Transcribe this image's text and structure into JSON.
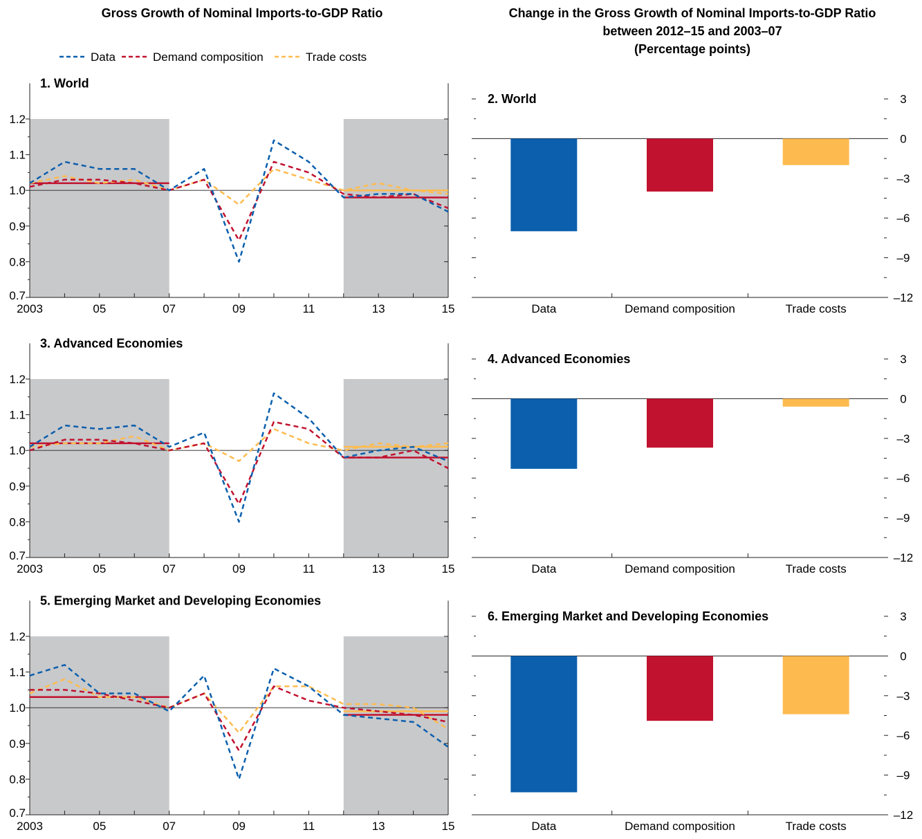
{
  "left_title": "Gross Growth of Nominal Imports-to-GDP Ratio",
  "right_title_lines": [
    "Change in the Gross Growth of Nominal Imports-to-GDP Ratio",
    "between 2012–15 and 2003–07",
    "(Percentage points)"
  ],
  "legend": [
    {
      "label": "Data",
      "color": "#0b5fad"
    },
    {
      "label": "Demand composition",
      "color": "#c1122f"
    },
    {
      "label": "Trade costs",
      "color": "#fdbb4f"
    }
  ],
  "colors": {
    "data": "#0b5fad",
    "demand": "#c1122f",
    "trade": "#fdbb4f",
    "shade": "#c8c9cb",
    "axis": "#231f20"
  },
  "chart_data": [
    {
      "type": "line",
      "title": "1. World",
      "x": [
        2003,
        2004,
        2005,
        2006,
        2007,
        2008,
        2009,
        2010,
        2011,
        2012,
        2013,
        2014,
        2015
      ],
      "xtick_values": [
        2003,
        2005,
        2007,
        2009,
        2011,
        2013,
        2015
      ],
      "xtick_labels": [
        "2003",
        "05",
        "07",
        "09",
        "11",
        "13",
        "15"
      ],
      "ylim": [
        0.7,
        1.2
      ],
      "yticks": [
        0.7,
        0.8,
        0.9,
        1.0,
        1.1,
        1.2
      ],
      "ytick_labels": [
        "0.7",
        "0.8",
        "0.9",
        "1.0",
        "1.1",
        "1.2"
      ],
      "reference_line": 1.0,
      "shaded_periods": [
        [
          2003,
          2007
        ],
        [
          2012,
          2015
        ]
      ],
      "series": [
        {
          "name": "Data",
          "style": "dashed",
          "values": [
            1.02,
            1.08,
            1.06,
            1.06,
            1.0,
            1.06,
            0.8,
            1.14,
            1.08,
            0.98,
            0.99,
            0.99,
            0.94
          ]
        },
        {
          "name": "Demand composition",
          "style": "dashed",
          "values": [
            1.01,
            1.03,
            1.03,
            1.02,
            1.0,
            1.03,
            0.86,
            1.08,
            1.05,
            0.99,
            0.98,
            0.99,
            0.95
          ]
        },
        {
          "name": "Trade costs",
          "style": "dashed",
          "values": [
            1.02,
            1.04,
            1.02,
            1.03,
            1.0,
            1.03,
            0.96,
            1.06,
            1.03,
            1.0,
            1.02,
            1.0,
            0.99
          ]
        }
      ],
      "period_averages": [
        {
          "series": "Demand composition",
          "start": 2003,
          "end": 2007,
          "value": 1.02
        },
        {
          "series": "Demand composition",
          "start": 2012,
          "end": 2015,
          "value": 0.98
        },
        {
          "series": "Trade costs",
          "start": 2012,
          "end": 2015,
          "value": 1.0
        }
      ]
    },
    {
      "type": "bar",
      "title": "2. World",
      "categories": [
        "Data",
        "Demand composition",
        "Trade costs"
      ],
      "values": [
        -7.0,
        -4.0,
        -2.0
      ],
      "ylim": [
        -12,
        3
      ],
      "yticks": [
        3,
        0,
        -3,
        -6,
        -9,
        -12
      ],
      "ytick_labels": [
        "3",
        "0",
        "–3",
        "–6",
        "–9",
        "–12"
      ]
    },
    {
      "type": "line",
      "title": "3. Advanced Economies",
      "x": [
        2003,
        2004,
        2005,
        2006,
        2007,
        2008,
        2009,
        2010,
        2011,
        2012,
        2013,
        2014,
        2015
      ],
      "xtick_values": [
        2003,
        2005,
        2007,
        2009,
        2011,
        2013,
        2015
      ],
      "xtick_labels": [
        "2003",
        "05",
        "07",
        "09",
        "11",
        "13",
        "15"
      ],
      "ylim": [
        0.7,
        1.2
      ],
      "yticks": [
        0.7,
        0.8,
        0.9,
        1.0,
        1.1,
        1.2
      ],
      "ytick_labels": [
        "0.7",
        "0.8",
        "0.9",
        "1.0",
        "1.1",
        "1.2"
      ],
      "reference_line": 1.0,
      "shaded_periods": [
        [
          2003,
          2007
        ],
        [
          2012,
          2015
        ]
      ],
      "series": [
        {
          "name": "Data",
          "style": "dashed",
          "values": [
            1.01,
            1.07,
            1.06,
            1.07,
            1.01,
            1.05,
            0.8,
            1.16,
            1.09,
            0.98,
            1.0,
            1.01,
            0.97
          ]
        },
        {
          "name": "Demand composition",
          "style": "dashed",
          "values": [
            1.0,
            1.03,
            1.03,
            1.02,
            1.0,
            1.02,
            0.85,
            1.08,
            1.06,
            0.98,
            0.98,
            1.0,
            0.95
          ]
        },
        {
          "name": "Trade costs",
          "style": "dashed",
          "values": [
            1.01,
            1.02,
            1.02,
            1.04,
            1.0,
            1.02,
            0.97,
            1.06,
            1.02,
            1.0,
            1.02,
            1.01,
            1.02
          ]
        }
      ],
      "period_averages": [
        {
          "series": "Demand composition",
          "start": 2003,
          "end": 2007,
          "value": 1.02
        },
        {
          "series": "Demand composition",
          "start": 2012,
          "end": 2015,
          "value": 0.98
        },
        {
          "series": "Trade costs",
          "start": 2012,
          "end": 2015,
          "value": 1.01
        }
      ]
    },
    {
      "type": "bar",
      "title": "4. Advanced Economies",
      "categories": [
        "Data",
        "Demand composition",
        "Trade costs"
      ],
      "values": [
        -5.3,
        -3.7,
        -0.6
      ],
      "ylim": [
        -12,
        3
      ],
      "yticks": [
        3,
        0,
        -3,
        -6,
        -9,
        -12
      ],
      "ytick_labels": [
        "3",
        "0",
        "–3",
        "–6",
        "–9",
        "–12"
      ]
    },
    {
      "type": "line",
      "title": "5. Emerging Market and Developing Economies",
      "x": [
        2003,
        2004,
        2005,
        2006,
        2007,
        2008,
        2009,
        2010,
        2011,
        2012,
        2013,
        2014,
        2015
      ],
      "xtick_values": [
        2003,
        2005,
        2007,
        2009,
        2011,
        2013,
        2015
      ],
      "xtick_labels": [
        "2003",
        "05",
        "07",
        "09",
        "11",
        "13",
        "15"
      ],
      "ylim": [
        0.7,
        1.2
      ],
      "yticks": [
        0.7,
        0.8,
        0.9,
        1.0,
        1.1,
        1.2
      ],
      "ytick_labels": [
        "0.7",
        "0.8",
        "0.9",
        "1.0",
        "1.1",
        "1.2"
      ],
      "reference_line": 1.0,
      "shaded_periods": [
        [
          2003,
          2007
        ],
        [
          2012,
          2015
        ]
      ],
      "series": [
        {
          "name": "Data",
          "style": "dashed",
          "values": [
            1.09,
            1.12,
            1.04,
            1.04,
            0.99,
            1.09,
            0.8,
            1.11,
            1.06,
            0.98,
            0.97,
            0.96,
            0.89
          ]
        },
        {
          "name": "Demand composition",
          "style": "dashed",
          "values": [
            1.05,
            1.05,
            1.04,
            1.02,
            1.0,
            1.04,
            0.88,
            1.06,
            1.02,
            1.0,
            0.99,
            0.98,
            0.96
          ]
        },
        {
          "name": "Trade costs",
          "style": "dashed",
          "values": [
            1.04,
            1.08,
            1.03,
            1.03,
            1.0,
            1.04,
            0.93,
            1.06,
            1.06,
            1.01,
            1.01,
            1.0,
            0.94
          ]
        }
      ],
      "period_averages": [
        {
          "series": "Demand composition",
          "start": 2003,
          "end": 2007,
          "value": 1.03
        },
        {
          "series": "Demand composition",
          "start": 2012,
          "end": 2015,
          "value": 0.98
        },
        {
          "series": "Trade costs",
          "start": 2012,
          "end": 2015,
          "value": 0.99
        }
      ]
    },
    {
      "type": "bar",
      "title": "6. Emerging Market and Developing Economies",
      "categories": [
        "Data",
        "Demand composition",
        "Trade costs"
      ],
      "values": [
        -10.3,
        -4.9,
        -4.4
      ],
      "ylim": [
        -12,
        3
      ],
      "yticks": [
        3,
        0,
        -3,
        -6,
        -9,
        -12
      ],
      "ytick_labels": [
        "3",
        "0",
        "–3",
        "–6",
        "–9",
        "–12"
      ]
    }
  ]
}
